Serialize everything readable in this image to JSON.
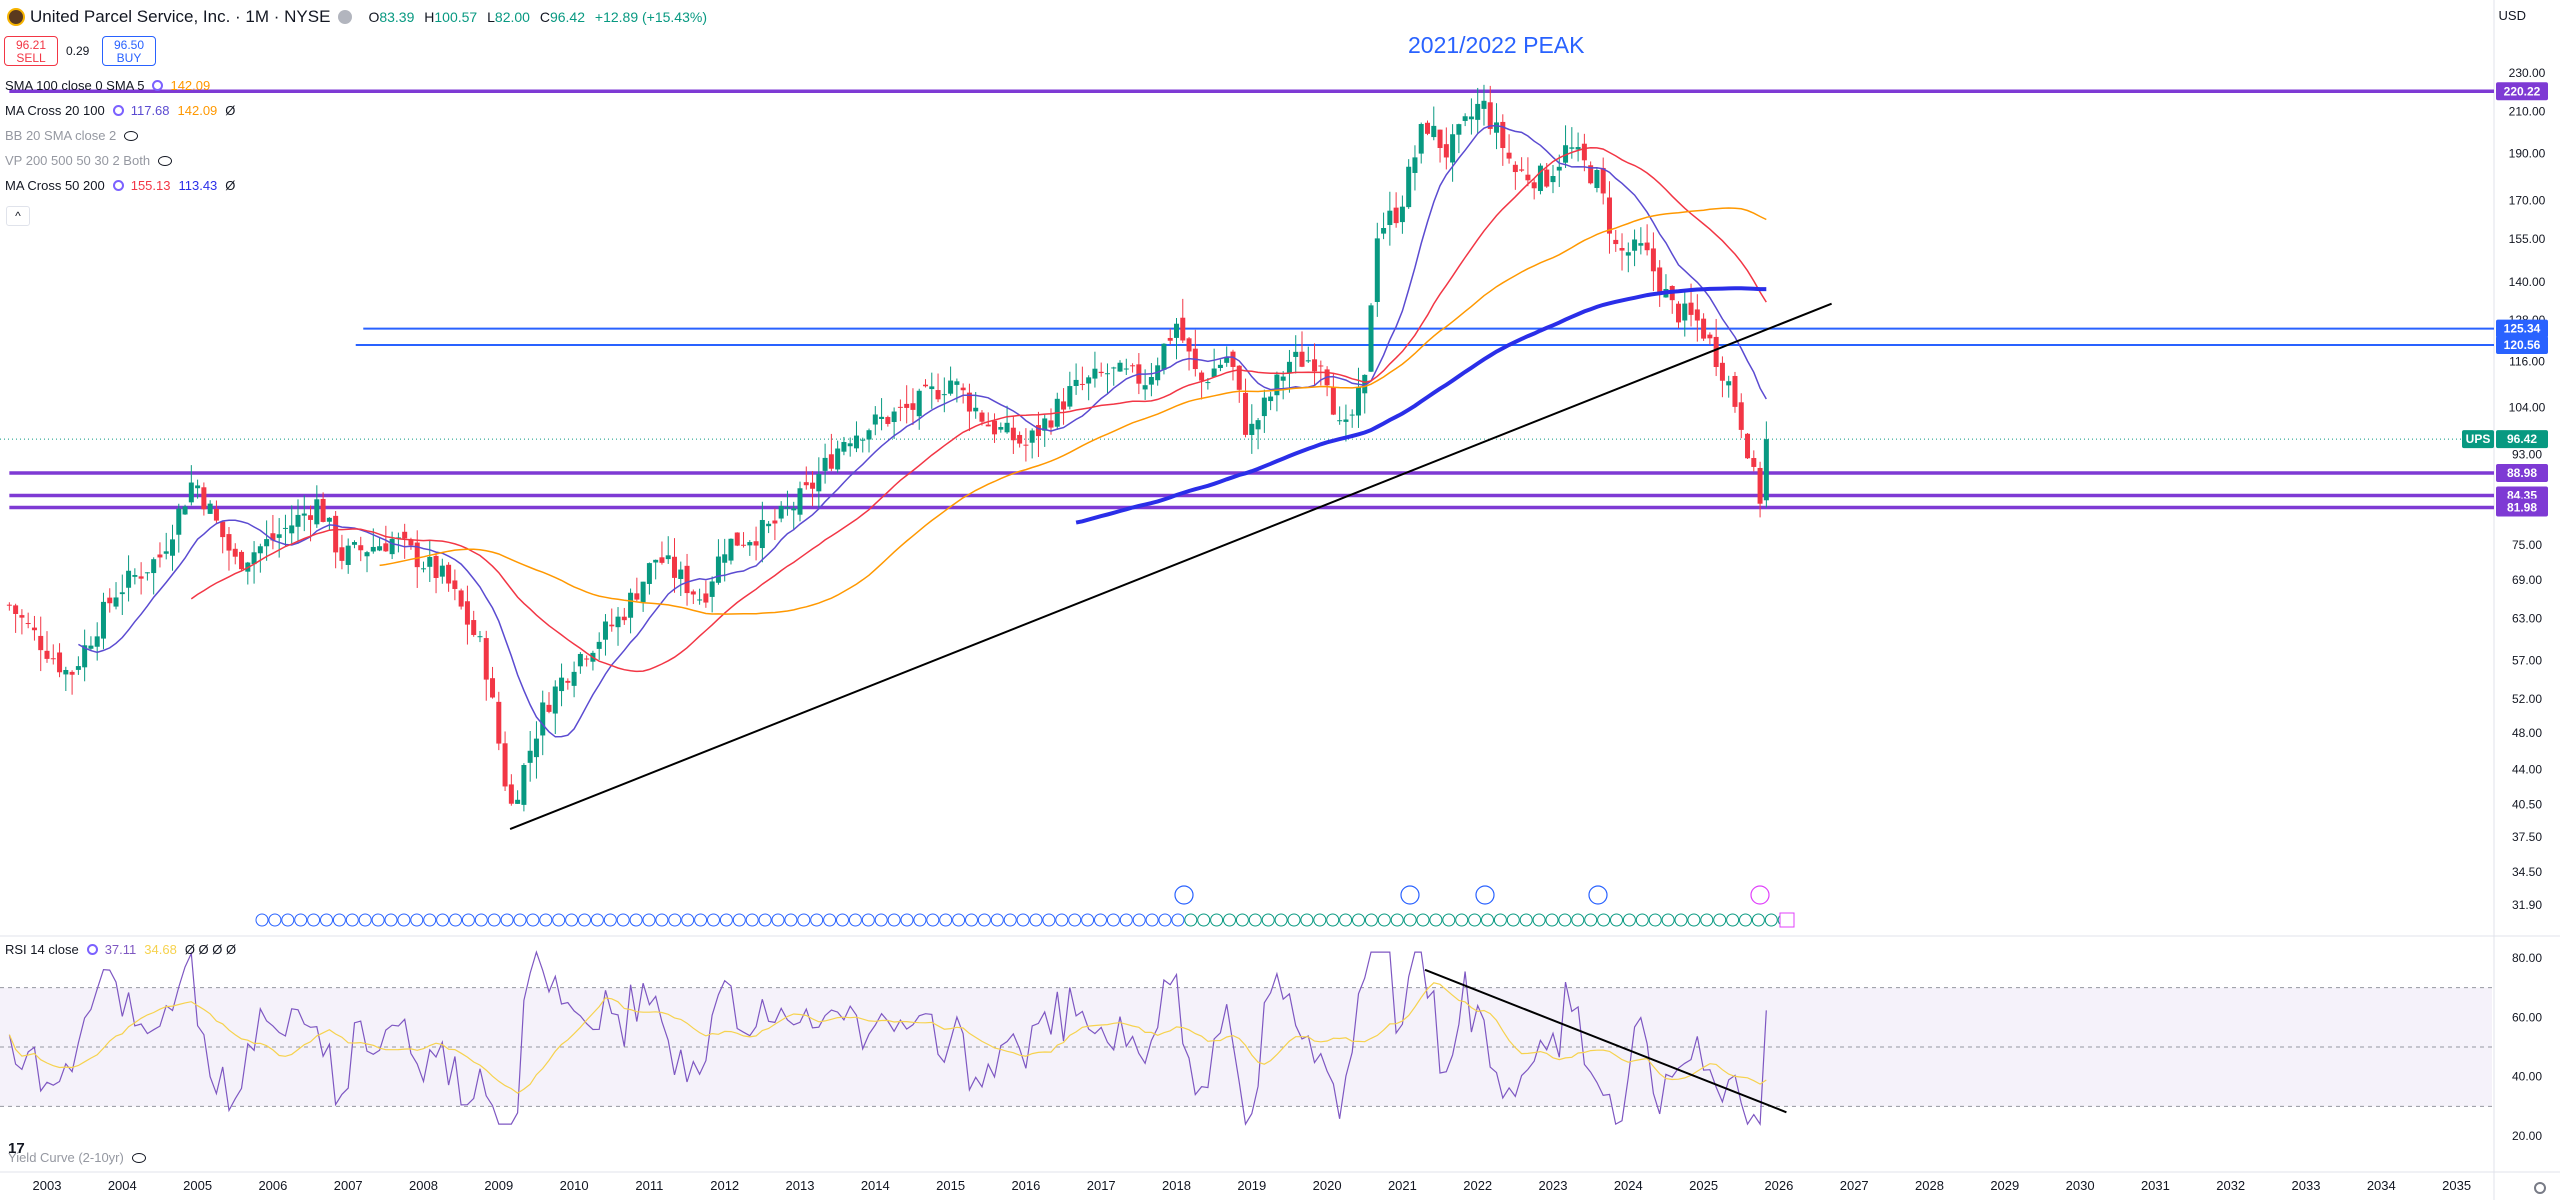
{
  "header": {
    "title": "United Parcel Service, Inc. · 1M · NYSE",
    "ohlc": [
      {
        "k": "O",
        "v": "83.39"
      },
      {
        "k": "H",
        "v": "100.57"
      },
      {
        "k": "L",
        "v": "82.00"
      },
      {
        "k": "C",
        "v": "96.42"
      },
      {
        "k": "",
        "v": "+12.89 (+15.43%)"
      }
    ],
    "currency": "USD"
  },
  "trade": {
    "sell_price": "96.21",
    "sell_label": "SELL",
    "spread": "0.29",
    "buy_price": "96.50",
    "buy_label": "BUY"
  },
  "indicators": [
    {
      "name": "SMA 100 close 0 SMA 5",
      "values": [
        {
          "text": "142.09",
          "color": "#ff9800"
        }
      ]
    },
    {
      "name": "MA Cross 20 100",
      "values": [
        {
          "text": "117.68",
          "color": "#5b4bd1"
        },
        {
          "text": "142.09",
          "color": "#ff9800"
        },
        {
          "text": "Ø",
          "color": "#131722"
        }
      ]
    },
    {
      "name": "BB 20 SMA close 2",
      "values": [],
      "dim": true
    },
    {
      "name": "VP 200 500 50 30 2 Both",
      "values": [],
      "dim": true
    },
    {
      "name": "MA Cross 50 200",
      "values": [
        {
          "text": "155.13",
          "color": "#f23645"
        },
        {
          "text": "113.43",
          "color": "#2a2ee8"
        },
        {
          "text": "Ø",
          "color": "#131722"
        }
      ]
    }
  ],
  "annotation": "2021/2022 PEAK",
  "rsi": {
    "label": "RSI 14 close",
    "v1": "37.11",
    "v2": "34.68",
    "rest": "Ø Ø Ø Ø"
  },
  "bottom_indicator": "Yield Curve (2-10yr)",
  "tv_logo": "17",
  "chart_data": {
    "type": "candlestick",
    "symbol": "UPS",
    "interval": "1M",
    "y_scale": "log",
    "ylim": [
      30,
      240
    ],
    "price_ticks": [
      230.0,
      210.0,
      190.0,
      170.0,
      155.0,
      140.0,
      128.0,
      116.0,
      104.0,
      93.0,
      75.0,
      69.0,
      63.0,
      57.0,
      52.0,
      48.0,
      44.0,
      40.5,
      37.5,
      34.5,
      31.9
    ],
    "x_ticks": [
      "2003",
      "2004",
      "2005",
      "2006",
      "2007",
      "2008",
      "2009",
      "2010",
      "2011",
      "2012",
      "2013",
      "2014",
      "2015",
      "2016",
      "2017",
      "2018",
      "2019",
      "2020",
      "2021",
      "2022",
      "2023",
      "2024",
      "2025",
      "2026",
      "2027",
      "2028",
      "2029",
      "2030",
      "2031",
      "2032",
      "2033",
      "2034",
      "2035"
    ],
    "price_labels": [
      {
        "text": "220.22",
        "price": 220.22,
        "color": "#7e3ad4"
      },
      {
        "text": "125.34",
        "price": 125.34,
        "color": "#2962ff"
      },
      {
        "text": "120.56",
        "price": 120.56,
        "color": "#2962ff"
      },
      {
        "text": "UPS",
        "price": 96.42,
        "color": "#089981"
      },
      {
        "text": "96.42",
        "price": 96.42,
        "color": "#089981"
      },
      {
        "text": "88.98",
        "price": 88.98,
        "color": "#7e3ad4"
      },
      {
        "text": "84.35",
        "price": 84.35,
        "color": "#7e3ad4"
      },
      {
        "text": "81.98",
        "price": 81.98,
        "color": "#7e3ad4"
      }
    ],
    "horizontal_levels": [
      {
        "price": 220.22,
        "color": "#7e3ad4",
        "start_year": 2002.5
      },
      {
        "price": 125.34,
        "color": "#2962ff",
        "start_year": 2007.2
      },
      {
        "price": 120.56,
        "color": "#2962ff",
        "start_year": 2007.1
      },
      {
        "price": 88.98,
        "color": "#7e3ad4",
        "start_year": 2002.5
      },
      {
        "price": 84.35,
        "color": "#7e3ad4",
        "start_year": 2002.5
      },
      {
        "price": 81.98,
        "color": "#7e3ad4",
        "start_year": 2002.5
      }
    ],
    "trendlines": [
      {
        "from": [
          2009.15,
          38.2
        ],
        "to": [
          2026.7,
          133
        ]
      },
      {
        "rsi": true,
        "from": [
          2021.3,
          76
        ],
        "to": [
          2026.1,
          28
        ]
      }
    ],
    "key_points": [
      {
        "date": "2009-03",
        "value": 37.99
      },
      {
        "date": "2022-02",
        "value": 233.72
      },
      {
        "date": "2025-09",
        "value": 82.0
      },
      {
        "date": "2025-10",
        "value": 96.42
      }
    ],
    "rsi_ticks": [
      80.0,
      60.0,
      40.0,
      20.0
    ],
    "rsi_band": [
      30,
      70
    ],
    "colors": {
      "up": "#089981",
      "down": "#f23645",
      "ma20": "#5b4bd1",
      "ma50": "#f23645",
      "ma100": "#ff9800",
      "ma200": "#2a2ee8",
      "rsi": "#7e57c2",
      "rsi_ma": "#f6d24e"
    }
  }
}
